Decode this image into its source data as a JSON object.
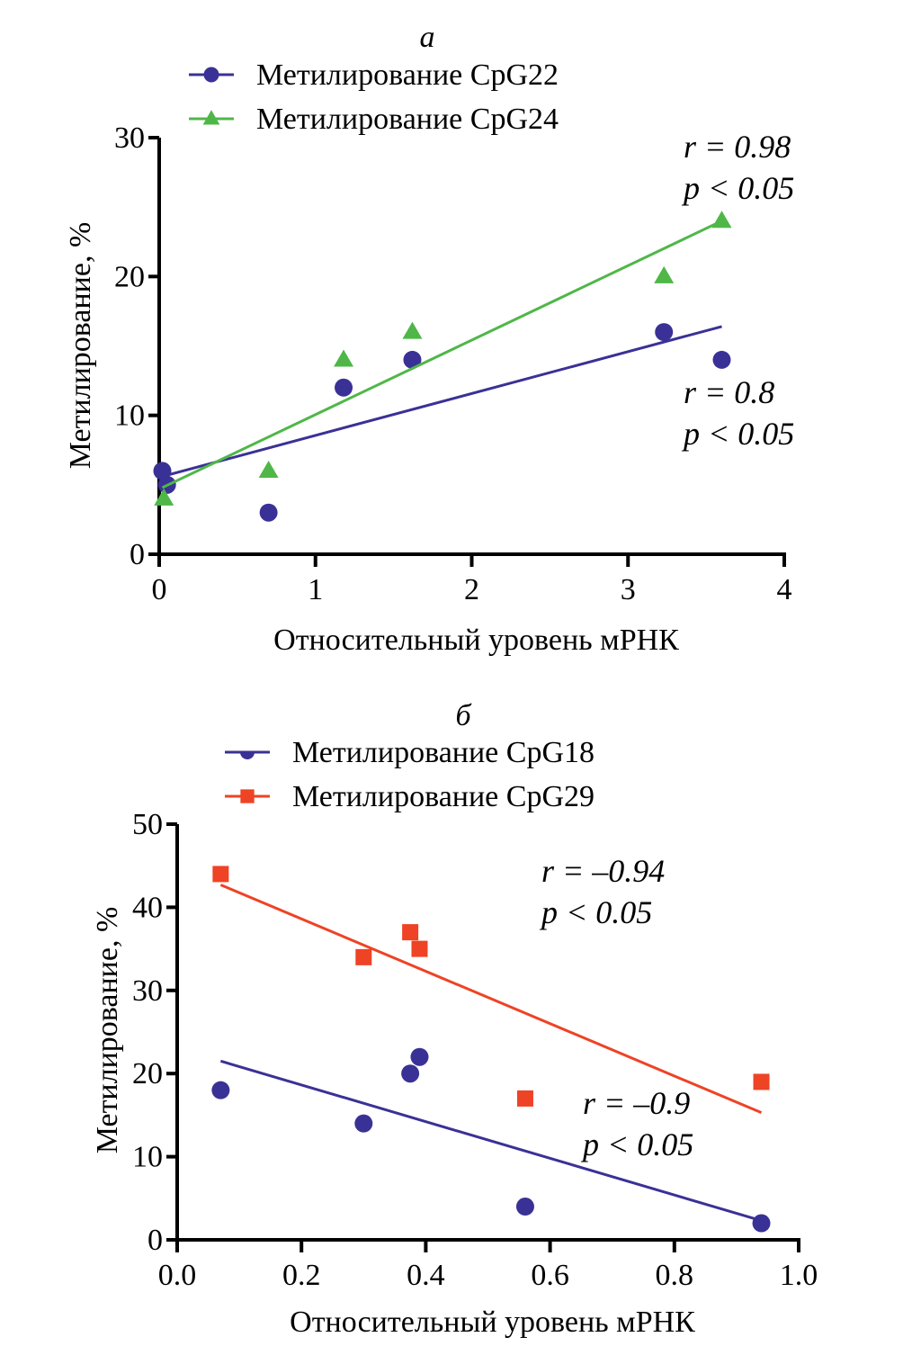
{
  "colors": {
    "blue": "#3a3196",
    "green": "#4fb748",
    "red": "#ee4325",
    "axis": "#000000"
  },
  "chart_data": [
    {
      "type": "scatter",
      "panel_label": "а",
      "xlabel": "Относительный уровень мРНК",
      "ylabel": "Метилирование, %",
      "xlim": [
        0,
        4
      ],
      "ylim": [
        0,
        30
      ],
      "xticks": [
        0,
        1,
        2,
        3,
        4
      ],
      "xtick_labels": [
        "0",
        "1",
        "2",
        "3",
        "4"
      ],
      "yticks": [
        0,
        10,
        20,
        30
      ],
      "ytick_labels": [
        "0",
        "10",
        "20",
        "30"
      ],
      "grid": false,
      "legend_position": "top",
      "series": [
        {
          "name": "Метилирование CpG22",
          "color": "blue",
          "marker": "circle",
          "x": [
            0.02,
            0.05,
            0.7,
            1.18,
            1.62,
            3.23,
            3.6
          ],
          "y": [
            6,
            5,
            3,
            12,
            14,
            16,
            14
          ],
          "trendline": {
            "x": [
              0.02,
              3.6
            ],
            "y": [
              5.6,
              16.4
            ]
          },
          "annotation": {
            "r": "r = 0.8",
            "p": "p < 0.05"
          }
        },
        {
          "name": "Метилирование CpG24",
          "color": "green",
          "marker": "triangle",
          "x": [
            0.03,
            0.7,
            1.18,
            1.62,
            3.23,
            3.6
          ],
          "y": [
            4,
            6,
            14,
            16,
            20,
            24
          ],
          "trendline": {
            "x": [
              0.02,
              3.6
            ],
            "y": [
              4.8,
              24
            ]
          },
          "annotation": {
            "r": "r = 0.98",
            "p": "p < 0.05"
          }
        }
      ]
    },
    {
      "type": "scatter",
      "panel_label": "б",
      "xlabel": "Относительный уровень мРНК",
      "ylabel": "Метилирование, %",
      "xlim": [
        0,
        1.0
      ],
      "ylim": [
        0,
        50
      ],
      "xticks": [
        0,
        0.2,
        0.4,
        0.6,
        0.8,
        1.0
      ],
      "xtick_labels": [
        "0.0",
        "0.2",
        "0.4",
        "0.6",
        "0.8",
        "1.0"
      ],
      "yticks": [
        0,
        10,
        20,
        30,
        40,
        50
      ],
      "ytick_labels": [
        "0",
        "10",
        "20",
        "30",
        "40",
        "50"
      ],
      "grid": false,
      "legend_position": "top",
      "series": [
        {
          "name": "Метилирование CpG18",
          "color": "blue",
          "marker": "circle",
          "x": [
            0.07,
            0.3,
            0.375,
            0.39,
            0.56,
            0.94
          ],
          "y": [
            18,
            14,
            20,
            22,
            4,
            2
          ],
          "trendline": {
            "x": [
              0.07,
              0.94
            ],
            "y": [
              21.5,
              2.3
            ]
          },
          "annotation": {
            "r": "r = –0.9",
            "p": "p < 0.05"
          }
        },
        {
          "name": "Метилирование CpG29",
          "color": "red",
          "marker": "square",
          "x": [
            0.07,
            0.3,
            0.375,
            0.39,
            0.56,
            0.94
          ],
          "y": [
            44,
            34,
            37,
            35,
            17,
            19
          ],
          "trendline": {
            "x": [
              0.07,
              0.94
            ],
            "y": [
              42.7,
              15.3
            ]
          },
          "annotation": {
            "r": "r = –0.94",
            "p": "p < 0.05"
          }
        }
      ]
    }
  ]
}
